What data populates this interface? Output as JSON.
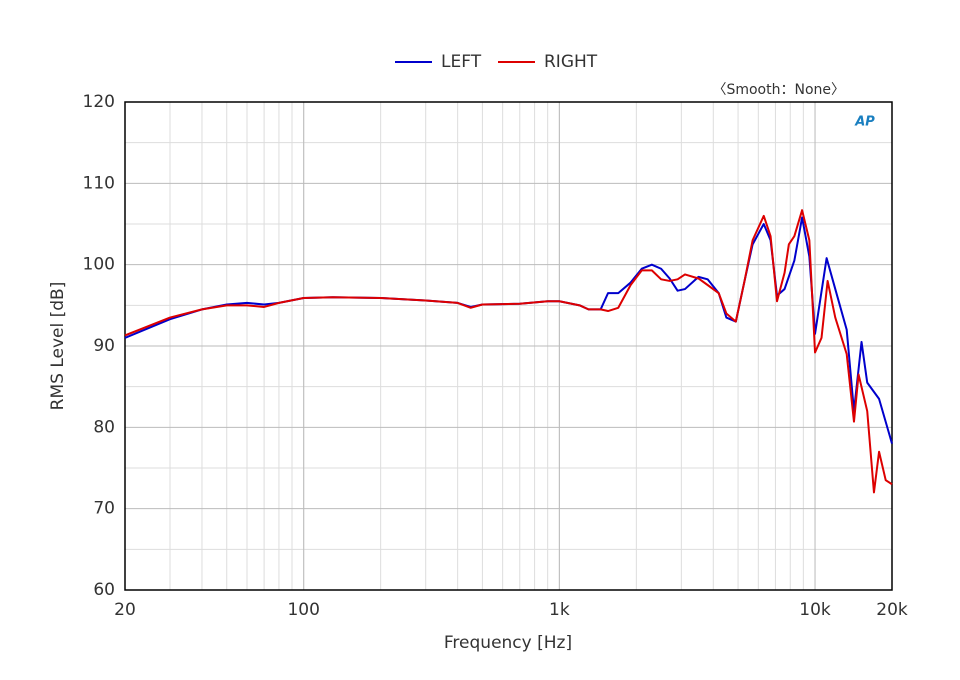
{
  "chart_data": {
    "type": "line",
    "xlabel": "Frequency [Hz]",
    "ylabel": "RMS Level [dB]",
    "annotation": "〈Smooth：None〉",
    "logo": "AP",
    "xscale": "log",
    "grid": true,
    "legend": "top",
    "xlim": [
      20,
      20000
    ],
    "ylim": [
      60,
      120
    ],
    "xticks": [
      {
        "value": 20,
        "label": "20"
      },
      {
        "value": 100,
        "label": "100"
      },
      {
        "value": 1000,
        "label": "1k"
      },
      {
        "value": 10000,
        "label": "10k"
      },
      {
        "value": 20000,
        "label": "20k"
      }
    ],
    "yticks": [
      60,
      70,
      80,
      90,
      100,
      110,
      120
    ],
    "series": [
      {
        "name": "LEFT",
        "color": "#0000cc",
        "x": [
          20,
          30,
          40,
          50,
          60,
          70,
          80,
          100,
          130,
          200,
          300,
          400,
          450,
          500,
          700,
          900,
          1000,
          1200,
          1300,
          1450,
          1550,
          1700,
          1900,
          2100,
          2300,
          2500,
          2700,
          2900,
          3100,
          3500,
          3800,
          4200,
          4500,
          4900,
          5300,
          5700,
          6300,
          6700,
          7100,
          7600,
          8300,
          8900,
          9500,
          10000,
          11100,
          12000,
          13300,
          14200,
          15200,
          16000,
          17800,
          20000
        ],
        "values": [
          91,
          93.3,
          94.5,
          95.1,
          95.3,
          95.1,
          95.3,
          95.9,
          96,
          95.9,
          95.6,
          95.3,
          94.8,
          95.1,
          95.2,
          95.5,
          95.5,
          95,
          94.5,
          94.5,
          96.5,
          96.5,
          97.8,
          99.5,
          100,
          99.5,
          98.3,
          96.8,
          97,
          98.5,
          98.2,
          96.5,
          93.5,
          93,
          98,
          102.5,
          105,
          103,
          96.2,
          97,
          100.5,
          105.8,
          101,
          91.5,
          100.8,
          97,
          92,
          82,
          90.5,
          85.5,
          83.5,
          78
        ]
      },
      {
        "name": "RIGHT",
        "color": "#dd0000",
        "x": [
          20,
          30,
          40,
          50,
          60,
          70,
          80,
          100,
          130,
          200,
          300,
          400,
          450,
          500,
          700,
          900,
          1000,
          1200,
          1300,
          1450,
          1550,
          1700,
          1900,
          2100,
          2300,
          2500,
          2700,
          2900,
          3100,
          3500,
          3800,
          4200,
          4500,
          4900,
          5300,
          5700,
          6300,
          6700,
          7100,
          7600,
          7900,
          8300,
          8900,
          9500,
          10000,
          10600,
          11200,
          12000,
          13300,
          14200,
          14800,
          16000,
          17000,
          17800,
          18900,
          20000
        ],
        "values": [
          91.3,
          93.5,
          94.5,
          95,
          95,
          94.8,
          95.3,
          95.9,
          96,
          95.9,
          95.6,
          95.3,
          94.7,
          95.1,
          95.2,
          95.5,
          95.5,
          95,
          94.5,
          94.5,
          94.3,
          94.7,
          97.5,
          99.3,
          99.3,
          98.2,
          98,
          98.2,
          98.8,
          98.3,
          97.5,
          96.5,
          94,
          93,
          98,
          103,
          106,
          103.5,
          95.5,
          99,
          102.5,
          103.5,
          106.7,
          103,
          89.2,
          91,
          98,
          93.5,
          89,
          80.7,
          86.5,
          82,
          72,
          77,
          73.5,
          73
        ]
      }
    ]
  }
}
